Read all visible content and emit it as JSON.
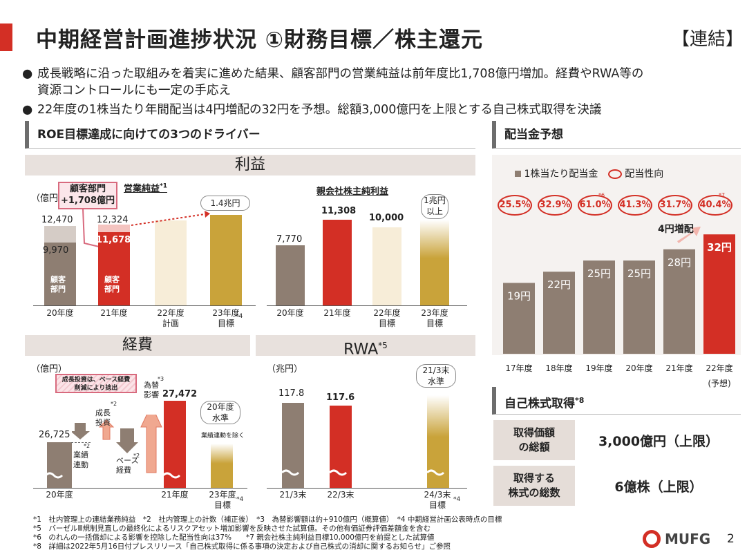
{
  "header": {
    "title": "中期経営計画進捗状況 ①財務目標／株主還元",
    "scope": "【連結】"
  },
  "bullets": [
    "成長戦略に沿った取組みを着実に進めた結果、顧客部門の営業純益は前年度比1,708億円増加。経費やRWA等の",
    "資源コントロールにも一定の手応え",
    "22年度の1株当たり年間配当は4円増配の32円を予想。総額3,000億円を上限とする自己株式取得を決議"
  ],
  "roe": {
    "heading": "ROE目標達成に向けての3つのドライバー"
  },
  "profit": {
    "panel_title": "利益",
    "unit": "（億円）",
    "op_title": "営業純益",
    "op_note": "*1",
    "callout": [
      "顧客部門",
      "+1,708億円"
    ],
    "op_categories": [
      "20年度",
      "21年度",
      "22年度\n計画",
      "23年度\n目標"
    ],
    "op_cat4_note": "*4",
    "op_values": {
      "fy20_total": "12,470",
      "fy20_customer": "9,970",
      "fy21_total": "12,324",
      "fy21_customer": "11,678",
      "fy23_label": "1.4兆円"
    },
    "segment_label": [
      "顧客",
      "部門"
    ],
    "ni_title": "親会社株主純利益",
    "ni_categories": [
      "20年度",
      "21年度",
      "22年度\n目標",
      "23年度\n目標"
    ],
    "ni_values": {
      "fy20": "7,770",
      "fy21": "11,308",
      "fy22": "10,000",
      "fy23_label": "1兆円\n以上"
    }
  },
  "expense": {
    "panel_title": "経費",
    "unit": "（億円）",
    "callout": "成長投資は、ベース経費\n削減により捻出",
    "start": "26,725",
    "end": "27,472",
    "steps": [
      "業績\n連動",
      "成長\n投資",
      "ベース\n経費",
      "為替\n影響"
    ],
    "step_notes": [
      "*2",
      "*2",
      "*2",
      "*3"
    ],
    "target_label": "20年度\n水準",
    "target_sub": "業績連動を除く",
    "categories": [
      "20年度",
      "21年度",
      "23年度\n目標"
    ],
    "cat_note": "*4"
  },
  "rwa": {
    "panel_title": "RWA",
    "panel_note": "*5",
    "unit": "（兆円）",
    "v1": "117.8",
    "v2": "117.6",
    "target_label": "21/3末\n水準",
    "categories": [
      "21/3末",
      "22/3末",
      "24/3末\n目標"
    ],
    "cat_note": "*4"
  },
  "dividend": {
    "heading": "配当金予想",
    "legend_bar": "1株当たり配当金",
    "legend_ratio": "配当性向",
    "ratios": [
      "25.5%",
      "32.9%",
      "61.0%",
      "41.3%",
      "31.7%",
      "40.4%"
    ],
    "ratio_notes": [
      "",
      "",
      "*6",
      "",
      "",
      "*7"
    ],
    "chart_data": {
      "type": "bar",
      "categories": [
        "17年度",
        "18年度",
        "19年度",
        "20年度",
        "21年度",
        "22年度\n(予想)"
      ],
      "values": [
        19,
        22,
        25,
        25,
        28,
        32
      ],
      "labels": [
        "19円",
        "22円",
        "25円",
        "25円",
        "28円",
        "32円"
      ],
      "colors": [
        "#8e7e72",
        "#8e7e72",
        "#8e7e72",
        "#8e7e72",
        "#8e7e72",
        "#d32f25"
      ]
    },
    "increase": "4円増配"
  },
  "buyback": {
    "heading": "自己株式取得",
    "note": "*8",
    "rows": [
      {
        "label": "取得価額\nの総額",
        "value": "3,000億円（上限）"
      },
      {
        "label": "取得する\n株式の総数",
        "value": "6億株（上限）"
      }
    ]
  },
  "footnotes": [
    "*1　社内管理上の連結業務純益　*2　社内管理上の計数（補正後）　*3　為替影響額は約+910億円（概算値）　*4 中期経営計画公表時点の目標",
    "*5　バーゼルⅢ規制見直しの最終化によるリスクアセット増加影響を反映させた試算値。その他有価証券評価差額金を含む",
    "*6　のれんの一括償却による影響を控除した配当性向は37%　　*7 親会社株主純利益目標10,000億円を前提とした試算値",
    "*8　詳細は2022年5月16日付プレスリリース「自己株式取得に係る事項の決定および自己株式の消却に関するお知らせ」ご参照"
  ],
  "footer": {
    "logo": "MUFG",
    "page": "2"
  }
}
